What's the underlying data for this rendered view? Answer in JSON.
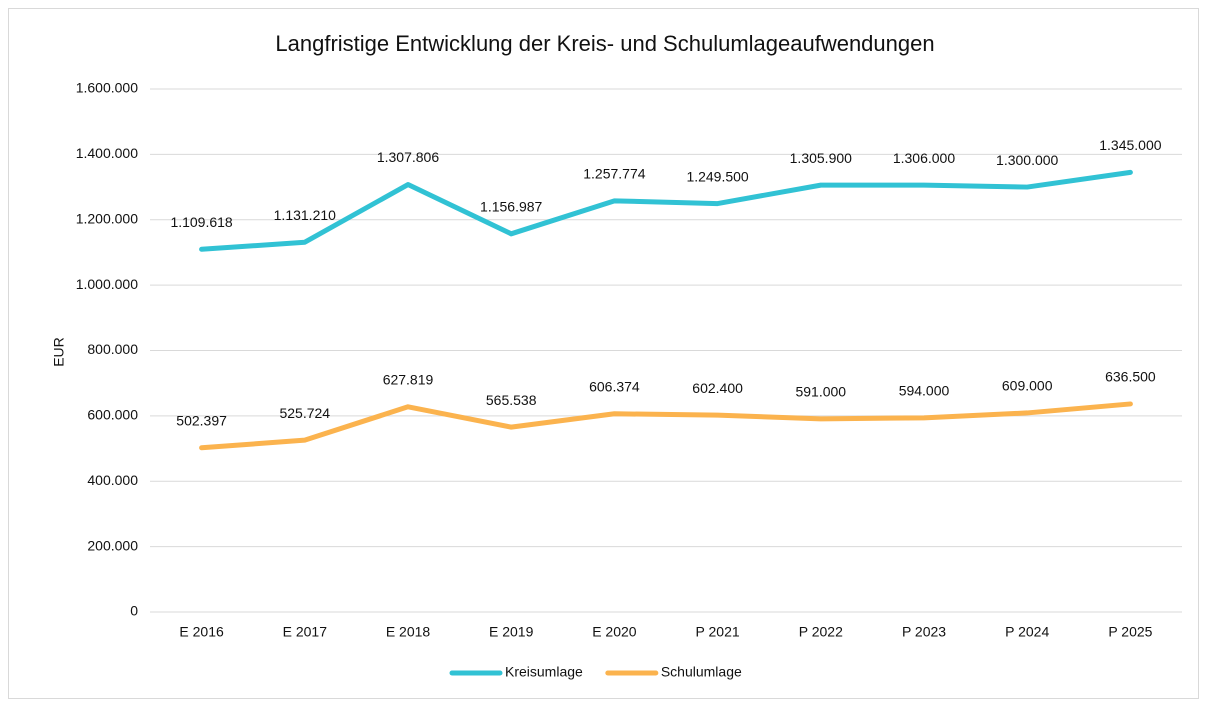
{
  "chart_data": {
    "type": "line",
    "title": "Langfristige Entwicklung der Kreis- und Schulumlageaufwendungen",
    "y_label": "EUR",
    "categories": [
      "E 2016",
      "E 2017",
      "E 2018",
      "E 2019",
      "E 2020",
      "P 2021",
      "P 2022",
      "P 2023",
      "P 2024",
      "P 2025"
    ],
    "series": [
      {
        "name": "Kreisumlage",
        "color": "#31c2d4",
        "values": [
          1109618,
          1131210,
          1307806,
          1156987,
          1257774,
          1249500,
          1305900,
          1306000,
          1300000,
          1345000
        ],
        "value_labels": [
          "1.109.618",
          "1.131.210",
          "1.307.806",
          "1.156.987",
          "1.257.774",
          "1.249.500",
          "1.305.900",
          "1.306.000",
          "1.300.000",
          "1.345.000"
        ]
      },
      {
        "name": "Schulumlage",
        "color": "#fbb34e",
        "values": [
          502397,
          525724,
          627819,
          565538,
          606374,
          602400,
          591000,
          594000,
          609000,
          636500
        ],
        "value_labels": [
          "502.397",
          "525.724",
          "627.819",
          "565.538",
          "606.374",
          "602.400",
          "591.000",
          "594.000",
          "609.000",
          "636.500"
        ]
      }
    ],
    "ylim": [
      0,
      1600000
    ],
    "yticks": [
      0,
      {
        "value": 200000,
        "label": "200.000"
      },
      {
        "value": 400000,
        "label": "400.000"
      },
      {
        "value": 600000,
        "label": "600.000"
      },
      {
        "value": 800000,
        "label": "800.000"
      },
      {
        "value": 1000000,
        "label": "1.000.000"
      },
      {
        "value": 1200000,
        "label": "1.200.000"
      },
      {
        "value": 1400000,
        "label": "1.400.000"
      },
      {
        "value": 1600000,
        "label": "1.600.000"
      }
    ],
    "grid": true,
    "legend": "bottom"
  }
}
